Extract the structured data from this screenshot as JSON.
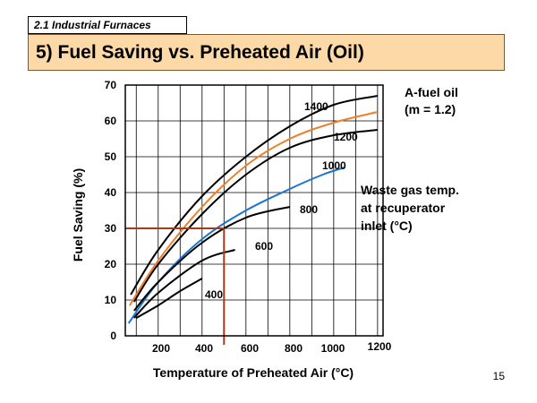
{
  "header": {
    "section": "2.1 Industrial Furnaces",
    "title": "5) Fuel Saving vs. Preheated Air (Oil)",
    "page_number": "15"
  },
  "chart_data": {
    "type": "line",
    "title": "",
    "xlabel": "Temperature of Preheated Air (°C)",
    "ylabel": "Fuel Saving (%)",
    "xlim": [
      50,
      1225
    ],
    "ylim": [
      0,
      70
    ],
    "x_ticks": [
      "200",
      "400",
      "600",
      "800",
      "1000",
      "1200"
    ],
    "y_ticks": [
      "0",
      "10",
      "20",
      "30",
      "40",
      "50",
      "60",
      "70"
    ],
    "grid": true,
    "colors": {
      "black": "#000000",
      "orange": "#f07f2a",
      "blue": "#1a75d1",
      "marker": "#a83a1a"
    },
    "series": [
      {
        "name": "1400",
        "color": "#000000",
        "x": [
          75,
          200,
          400,
          600,
          800,
          1000,
          1200
        ],
        "y": [
          11.5,
          24,
          39,
          50,
          58.5,
          64.5,
          67
        ]
      },
      {
        "name": "1200",
        "color": "#000000",
        "x": [
          90,
          200,
          400,
          600,
          800,
          1000,
          1200
        ],
        "y": [
          9.5,
          20,
          34,
          45,
          52.5,
          56,
          57.5
        ]
      },
      {
        "name": "",
        "color": "#f07f2a",
        "x": [
          70,
          200,
          400,
          600,
          800,
          1000,
          1200
        ],
        "y": [
          8.5,
          21,
          36,
          47.5,
          55,
          59.5,
          62.5
        ]
      },
      {
        "name": "1000",
        "color": "#1a75d1",
        "x": [
          65,
          200,
          400,
          600,
          800,
          950,
          1050
        ],
        "y": [
          3.5,
          15,
          27,
          35,
          41,
          45,
          47
        ]
      },
      {
        "name": "800",
        "color": "#000000",
        "x": [
          90,
          200,
          400,
          600,
          800
        ],
        "y": [
          7,
          15,
          26,
          33,
          36
        ]
      },
      {
        "name": "600",
        "color": "#000000",
        "x": [
          90,
          200,
          400,
          550
        ],
        "y": [
          5,
          12,
          21,
          24
        ]
      },
      {
        "name": "400",
        "color": "#000000",
        "x": [
          100,
          200,
          300,
          400
        ],
        "y": [
          5,
          8.5,
          12.5,
          16
        ]
      }
    ],
    "annotations": {
      "fuel_name": "A-fuel oil",
      "fuel_param": "(m = 1.2)",
      "waste_gas_line1": "Waste gas temp.",
      "waste_gas_line2": "at recuperator",
      "waste_gas_line3": "inlet (°C)"
    },
    "reference_point": {
      "x": 500,
      "y": 30
    }
  }
}
